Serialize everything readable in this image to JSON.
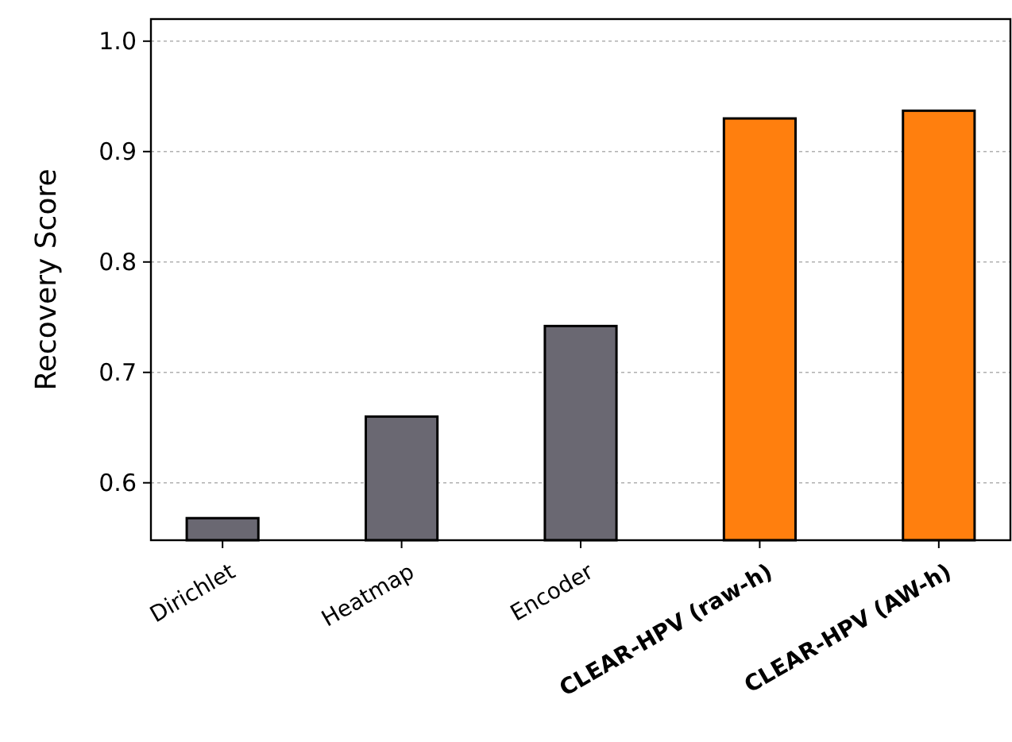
{
  "chart_data": {
    "type": "bar",
    "ylabel": "Recovery Score",
    "categories": [
      "Dirichlet",
      "Heatmap",
      "Encoder",
      "CLEAR-HPV (raw-h)",
      "CLEAR-HPV (AW-h)"
    ],
    "values": [
      0.568,
      0.66,
      0.742,
      0.93,
      0.937
    ],
    "colors": [
      "#6a6872",
      "#6a6872",
      "#6a6872",
      "#ff7f0e",
      "#ff7f0e"
    ],
    "ylim": [
      0.548,
      1.02
    ],
    "yticks": [
      {
        "value": 0.6,
        "label": "0.6"
      },
      {
        "value": 0.7,
        "label": "0.7"
      },
      {
        "value": 0.8,
        "label": "0.8"
      },
      {
        "value": 0.9,
        "label": "0.9"
      },
      {
        "value": 1.0,
        "label": "1.0"
      }
    ],
    "grid": "y"
  }
}
